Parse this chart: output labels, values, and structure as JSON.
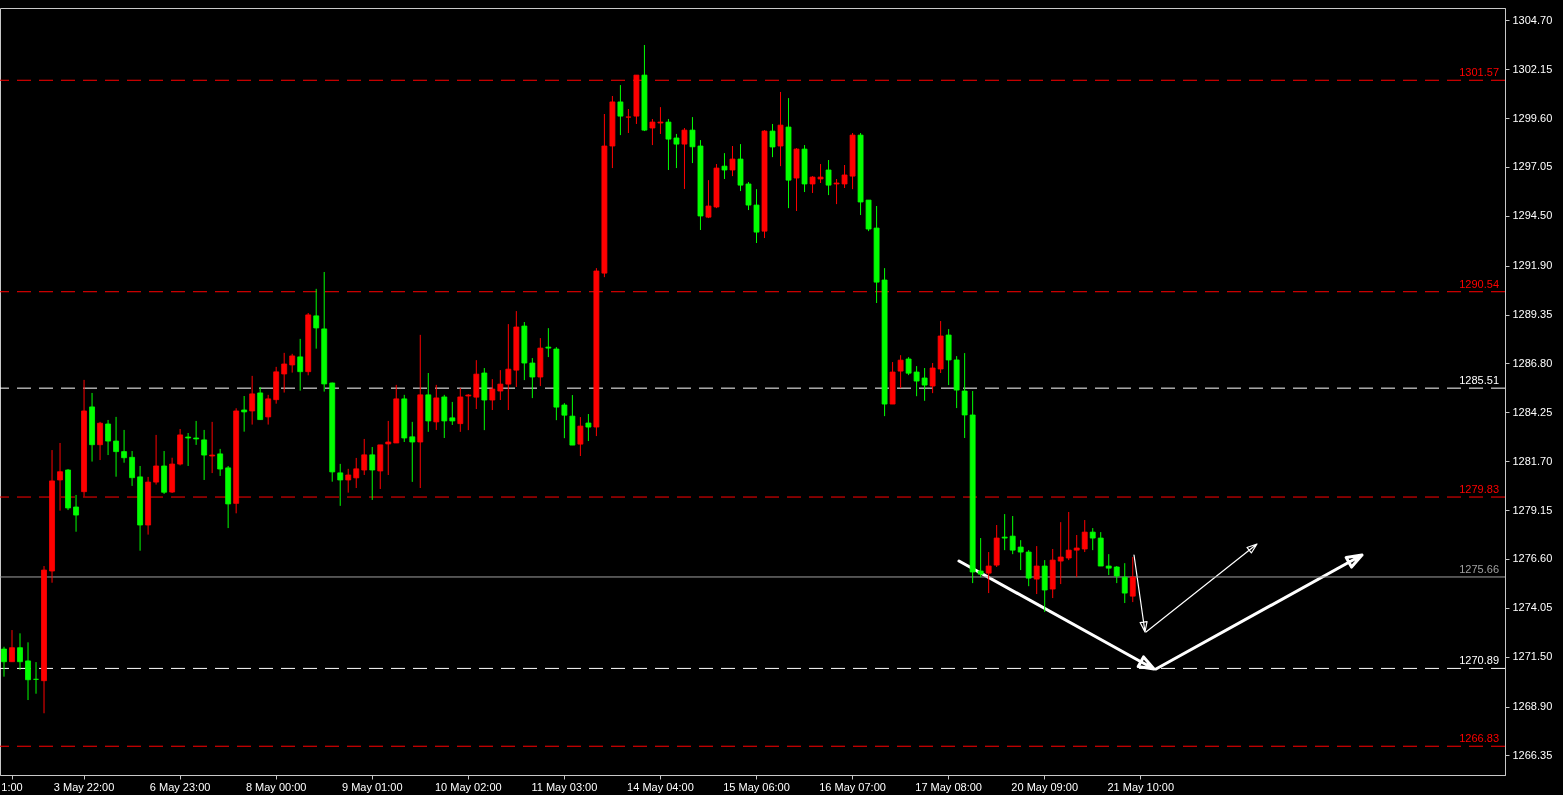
{
  "chart_data": {
    "type": "candlestick",
    "categories": [
      null,
      "1:00",
      null,
      null,
      null,
      null,
      null,
      null,
      null,
      null,
      "3 May 22:00",
      null,
      null,
      null,
      null,
      null,
      null,
      null,
      null,
      null,
      null,
      null,
      "6 May 23:00",
      null,
      null,
      null,
      null,
      null,
      null,
      null,
      null,
      null,
      null,
      null,
      "8 May 00:00",
      null,
      null,
      null,
      null,
      null,
      null,
      null,
      null,
      null,
      null,
      null,
      "9 May 01:00",
      null,
      null,
      null,
      null,
      null,
      null,
      null,
      null,
      null,
      null,
      null,
      "10 May 02:00",
      null,
      null,
      null,
      null,
      null,
      null,
      null,
      null,
      null,
      null,
      null,
      "11 May 03:00",
      null,
      null,
      null,
      null,
      null,
      null,
      null,
      null,
      null,
      null,
      null,
      "14 May 04:00",
      null,
      null,
      null,
      null,
      null,
      null,
      null,
      null,
      null,
      null,
      null,
      "15 May 06:00",
      null,
      null,
      null,
      null,
      null,
      null,
      null,
      null,
      null,
      null,
      null,
      "16 May 07:00",
      null,
      null,
      null,
      null,
      null,
      null,
      null,
      null,
      null,
      null,
      null,
      "17 May 08:00",
      null,
      null,
      null,
      null,
      null,
      null,
      null,
      null,
      null,
      null,
      null,
      "20 May 09:00",
      null,
      null,
      null,
      null,
      null,
      null,
      null,
      null,
      null,
      null,
      null,
      "21 May 10:00",
      null,
      null,
      null,
      null,
      null,
      null,
      null,
      null,
      null,
      null,
      null,
      null,
      null,
      null,
      null,
      null,
      null,
      null,
      null,
      null,
      null,
      null,
      null,
      null,
      null,
      null,
      null,
      null,
      null,
      null,
      null,
      null,
      null,
      null,
      null,
      null,
      null,
      null,
      null,
      null,
      null,
      null,
      null,
      null,
      null
    ],
    "ohlc": [
      [
        1271.9,
        1272.02,
        1270.46,
        1271.24
      ],
      [
        1271.24,
        1272.89,
        1271.24,
        1271.97
      ],
      [
        1271.97,
        1272.72,
        1270.81,
        1271.24
      ],
      [
        1271.28,
        1272.25,
        1269.24,
        1270.3
      ],
      [
        1270.32,
        1271.22,
        1269.57,
        1270.32
      ],
      [
        1270.25,
        1276.23,
        1268.55,
        1276.02
      ],
      [
        1275.97,
        1282.28,
        1275.36,
        1280.67
      ],
      [
        1280.72,
        1282.65,
        1279.12,
        1281.15
      ],
      [
        1281.24,
        1281.29,
        1279.15,
        1279.26
      ],
      [
        1279.31,
        1279.94,
        1278.02,
        1278.89
      ],
      [
        1280.11,
        1285.94,
        1279.85,
        1284.32
      ],
      [
        1284.53,
        1285.26,
        1281.68,
        1282.56
      ],
      [
        1282.56,
        1283.75,
        1281.76,
        1283.68
      ],
      [
        1283.64,
        1283.85,
        1282.02,
        1282.75
      ],
      [
        1282.75,
        1284.01,
        1280.89,
        1282.2
      ],
      [
        1282.2,
        1283.33,
        1281.62,
        1281.88
      ],
      [
        1281.9,
        1282.23,
        1280.41,
        1280.84
      ],
      [
        1280.88,
        1281.45,
        1277.03,
        1278.37
      ],
      [
        1278.37,
        1280.88,
        1277.87,
        1280.61
      ],
      [
        1280.61,
        1283.07,
        1280.48,
        1281.45
      ],
      [
        1281.45,
        1282.23,
        1279.99,
        1280.08
      ],
      [
        1280.09,
        1281.88,
        1280.04,
        1281.55
      ],
      [
        1281.55,
        1283.38,
        1281.48,
        1283.07
      ],
      [
        1282.96,
        1283.17,
        1281.45,
        1282.91
      ],
      [
        1282.91,
        1283.8,
        1282.55,
        1282.86
      ],
      [
        1282.81,
        1283.33,
        1280.72,
        1282.02
      ],
      [
        1281.97,
        1283.75,
        1281.08,
        1282.02
      ],
      [
        1282.08,
        1282.34,
        1280.93,
        1281.29
      ],
      [
        1281.35,
        1281.45,
        1278.21,
        1279.47
      ],
      [
        1279.5,
        1284.46,
        1278.98,
        1284.32
      ],
      [
        1284.37,
        1285.1,
        1283.24,
        1284.27
      ],
      [
        1284.32,
        1286.15,
        1283.61,
        1285.21
      ],
      [
        1285.26,
        1285.57,
        1283.85,
        1283.87
      ],
      [
        1284.01,
        1285.16,
        1283.61,
        1284.95
      ],
      [
        1284.91,
        1286.62,
        1284.7,
        1286.36
      ],
      [
        1286.25,
        1287.35,
        1285.28,
        1286.77
      ],
      [
        1286.72,
        1287.3,
        1286.32,
        1287.19
      ],
      [
        1287.14,
        1288.08,
        1285.38,
        1286.37
      ],
      [
        1286.37,
        1289.43,
        1286.18,
        1289.33
      ],
      [
        1289.28,
        1290.69,
        1287.57,
        1288.65
      ],
      [
        1288.6,
        1291.57,
        1285.33,
        1285.73
      ],
      [
        1285.78,
        1285.8,
        1280.63,
        1281.14
      ],
      [
        1281.09,
        1281.56,
        1279.37,
        1280.72
      ],
      [
        1280.72,
        1281.3,
        1280.06,
        1280.98
      ],
      [
        1280.83,
        1281.87,
        1280.3,
        1281.3
      ],
      [
        1281.24,
        1282.86,
        1280.98,
        1282.03
      ],
      [
        1282.03,
        1282.44,
        1279.68,
        1281.24
      ],
      [
        1281.19,
        1282.55,
        1280.25,
        1282.55
      ],
      [
        1282.6,
        1283.8,
        1280.98,
        1282.7
      ],
      [
        1282.65,
        1285.68,
        1282.65,
        1284.95
      ],
      [
        1284.95,
        1285.16,
        1282.7,
        1282.91
      ],
      [
        1282.97,
        1283.75,
        1280.62,
        1282.7
      ],
      [
        1282.7,
        1288.29,
        1280.3,
        1285.16
      ],
      [
        1285.16,
        1286.3,
        1283.23,
        1283.8
      ],
      [
        1283.75,
        1285.68,
        1283.33,
        1285.0
      ],
      [
        1285.05,
        1285.16,
        1282.91,
        1283.8
      ],
      [
        1283.96,
        1284.79,
        1283.59,
        1283.8
      ],
      [
        1283.66,
        1285.52,
        1283.23,
        1285.05
      ],
      [
        1285.1,
        1285.2,
        1283.32,
        1285.15
      ],
      [
        1285.04,
        1286.97,
        1284.42,
        1286.24
      ],
      [
        1286.3,
        1286.56,
        1283.32,
        1284.89
      ],
      [
        1284.89,
        1285.98,
        1284.37,
        1285.46
      ],
      [
        1285.36,
        1286.45,
        1284.89,
        1285.72
      ],
      [
        1285.72,
        1288.85,
        1284.37,
        1286.5
      ],
      [
        1286.45,
        1289.53,
        1285.57,
        1288.7
      ],
      [
        1288.75,
        1288.96,
        1285.93,
        1286.82
      ],
      [
        1286.82,
        1287.08,
        1284.99,
        1286.09
      ],
      [
        1286.09,
        1288.12,
        1285.62,
        1287.6
      ],
      [
        1287.65,
        1288.64,
        1287.13,
        1287.6
      ],
      [
        1287.55,
        1287.65,
        1283.84,
        1284.52
      ],
      [
        1284.63,
        1284.73,
        1282.9,
        1284.1
      ],
      [
        1284.05,
        1285.15,
        1282.54,
        1282.54
      ],
      [
        1282.59,
        1284.0,
        1281.97,
        1283.53
      ],
      [
        1283.69,
        1284.16,
        1282.75,
        1283.48
      ],
      [
        1283.48,
        1291.77,
        1283.01,
        1291.62
      ],
      [
        1291.51,
        1299.81,
        1291.3,
        1298.14
      ],
      [
        1298.14,
        1300.75,
        1296.99,
        1300.44
      ],
      [
        1300.44,
        1301.32,
        1298.71,
        1299.7
      ],
      [
        1299.65,
        1300.07,
        1298.82,
        1299.65
      ],
      [
        1299.7,
        1301.84,
        1299.29,
        1301.84
      ],
      [
        1301.84,
        1303.41,
        1298.92,
        1298.97
      ],
      [
        1299.08,
        1299.55,
        1298.19,
        1299.39
      ],
      [
        1299.34,
        1300.17,
        1298.77,
        1299.39
      ],
      [
        1299.39,
        1299.55,
        1296.89,
        1298.5
      ],
      [
        1298.56,
        1298.77,
        1296.99,
        1298.24
      ],
      [
        1298.24,
        1299.08,
        1295.9,
        1298.97
      ],
      [
        1298.97,
        1299.65,
        1297.25,
        1298.1
      ],
      [
        1298.14,
        1298.45,
        1293.76,
        1294.49
      ],
      [
        1294.43,
        1296.36,
        1294.38,
        1295.01
      ],
      [
        1294.96,
        1297.2,
        1294.9,
        1296.99
      ],
      [
        1297.09,
        1297.77,
        1296.42,
        1296.89
      ],
      [
        1296.89,
        1298.14,
        1296.57,
        1297.46
      ],
      [
        1297.46,
        1298.24,
        1295.79,
        1296.1
      ],
      [
        1296.16,
        1296.26,
        1294.8,
        1295.06
      ],
      [
        1295.06,
        1295.89,
        1293.08,
        1293.65
      ],
      [
        1293.7,
        1298.97,
        1293.34,
        1298.92
      ],
      [
        1298.92,
        1299.29,
        1297.56,
        1298.09
      ],
      [
        1298.14,
        1300.96,
        1297.09,
        1299.23
      ],
      [
        1299.13,
        1300.64,
        1294.9,
        1296.36
      ],
      [
        1296.47,
        1298.03,
        1294.75,
        1297.98
      ],
      [
        1297.98,
        1298.19,
        1295.74,
        1296.16
      ],
      [
        1296.16,
        1296.57,
        1295.69,
        1296.52
      ],
      [
        1296.42,
        1297.2,
        1296.21,
        1296.52
      ],
      [
        1296.89,
        1297.41,
        1295.58,
        1296.1
      ],
      [
        1296.16,
        1296.42,
        1295.11,
        1296.21
      ],
      [
        1296.16,
        1297.15,
        1295.95,
        1296.63
      ],
      [
        1296.57,
        1298.82,
        1295.89,
        1298.71
      ],
      [
        1298.71,
        1298.82,
        1294.54,
        1295.22
      ],
      [
        1295.32,
        1295.32,
        1293.7,
        1293.81
      ],
      [
        1293.86,
        1295.01,
        1289.95,
        1291.04
      ],
      [
        1291.15,
        1291.77,
        1284.05,
        1284.68
      ],
      [
        1284.68,
        1286.87,
        1284.68,
        1286.35
      ],
      [
        1286.4,
        1287.23,
        1285.51,
        1286.97
      ],
      [
        1287.03,
        1287.13,
        1286.19,
        1286.29
      ],
      [
        1286.35,
        1286.66,
        1285.09,
        1285.88
      ],
      [
        1286.04,
        1286.56,
        1284.85,
        1285.67
      ],
      [
        1285.62,
        1286.82,
        1285.25,
        1286.56
      ],
      [
        1286.51,
        1289.01,
        1286.3,
        1288.23
      ],
      [
        1288.28,
        1288.59,
        1285.67,
        1286.98
      ],
      [
        1286.98,
        1287.18,
        1284.47,
        1285.41
      ],
      [
        1285.36,
        1287.34,
        1282.91,
        1284.11
      ],
      [
        1284.11,
        1285.36,
        1275.34,
        1275.92
      ],
      [
        1275.97,
        1277.69,
        1275.65,
        1275.81
      ],
      [
        1275.86,
        1276.96,
        1274.82,
        1276.23
      ],
      [
        1276.28,
        1278.37,
        1276.18,
        1277.69
      ],
      [
        1277.74,
        1278.94,
        1277.06,
        1277.69
      ],
      [
        1277.79,
        1278.84,
        1276.85,
        1277.06
      ],
      [
        1277.22,
        1277.58,
        1276.02,
        1276.96
      ],
      [
        1276.96,
        1277.06,
        1275.18,
        1275.6
      ],
      [
        1275.55,
        1277.27,
        1274.77,
        1276.23
      ],
      [
        1276.23,
        1276.54,
        1273.83,
        1274.98
      ],
      [
        1275.03,
        1277.12,
        1274.56,
        1276.54
      ],
      [
        1276.49,
        1278.52,
        1275.29,
        1276.7
      ],
      [
        1276.65,
        1279.05,
        1276.54,
        1277.06
      ],
      [
        1277.06,
        1277.85,
        1275.65,
        1277.17
      ],
      [
        1277.12,
        1278.63,
        1276.96,
        1278.0
      ],
      [
        1278.0,
        1278.21,
        1277.06,
        1277.69
      ],
      [
        1277.69,
        1278.0,
        1276.23,
        1276.23
      ],
      [
        1276.23,
        1276.85,
        1275.76,
        1276.12
      ],
      [
        1276.18,
        1276.23,
        1275.34,
        1275.71
      ],
      [
        1275.65,
        1276.38,
        1274.3,
        1274.82
      ],
      [
        1274.66,
        1276.7,
        1274.35,
        1275.66
      ],
      null,
      null,
      null,
      null,
      null,
      null,
      null,
      null,
      null,
      null,
      null,
      null,
      null,
      null,
      null,
      null,
      null,
      null,
      null,
      null,
      null,
      null,
      null,
      null,
      null,
      null,
      null,
      null,
      null,
      null,
      null,
      null,
      null,
      null,
      null,
      null,
      null,
      null,
      null,
      null,
      null,
      null,
      null,
      null,
      null,
      null
    ],
    "colors": [
      "#00ff00",
      "#ff0000",
      "#00ff00",
      "#00ff00",
      "#00ff00",
      "#ff0000",
      "#ff0000",
      "#ff0000",
      "#00ff00",
      "#00ff00",
      "#ff0000",
      "#00ff00",
      "#ff0000",
      "#00ff00",
      "#00ff00",
      "#00ff00",
      "#00ff00",
      "#00ff00",
      "#ff0000",
      "#ff0000",
      "#00ff00",
      "#ff0000",
      "#ff0000",
      "#00ff00",
      "#00ff00",
      "#00ff00",
      "#ff0000",
      "#00ff00",
      "#00ff00",
      "#ff0000",
      "#00ff00",
      "#ff0000",
      "#00ff00",
      "#ff0000",
      "#ff0000",
      "#ff0000",
      "#ff0000",
      "#00ff00",
      "#ff0000",
      "#00ff00",
      "#00ff00",
      "#00ff00",
      "#00ff00",
      "#ff0000",
      "#ff0000",
      "#ff0000",
      "#00ff00",
      "#ff0000",
      "#ff0000",
      "#ff0000",
      "#00ff00",
      "#00ff00",
      "#ff0000",
      "#00ff00",
      "#ff0000",
      "#00ff00",
      "#00ff00",
      "#ff0000",
      "#ff0000",
      "#ff0000",
      "#00ff00",
      "#ff0000",
      "#ff0000",
      "#ff0000",
      "#ff0000",
      "#00ff00",
      "#00ff00",
      "#ff0000",
      "#00ff00",
      "#00ff00",
      "#00ff00",
      "#00ff00",
      "#ff0000",
      "#00ff00",
      "#ff0000",
      "#ff0000",
      "#ff0000",
      "#00ff00",
      "#ff0000",
      "#ff0000",
      "#00ff00",
      "#ff0000",
      "#ff0000",
      "#00ff00",
      "#00ff00",
      "#ff0000",
      "#00ff00",
      "#00ff00",
      "#ff0000",
      "#ff0000",
      "#00ff00",
      "#ff0000",
      "#00ff00",
      "#00ff00",
      "#00ff00",
      "#ff0000",
      "#00ff00",
      "#ff0000",
      "#00ff00",
      "#ff0000",
      "#00ff00",
      "#ff0000",
      "#ff0000",
      "#00ff00",
      "#ff0000",
      "#ff0000",
      "#ff0000",
      "#00ff00",
      "#00ff00",
      "#00ff00",
      "#00ff00",
      "#ff0000",
      "#ff0000",
      "#00ff00",
      "#00ff00",
      "#00ff00",
      "#ff0000",
      "#ff0000",
      "#00ff00",
      "#00ff00",
      "#00ff00",
      "#00ff00",
      "#00ff00",
      "#ff0000",
      "#ff0000",
      "#00ff00",
      "#00ff00",
      "#00ff00",
      "#00ff00",
      "#ff0000",
      "#00ff00",
      "#ff0000",
      "#ff0000",
      "#ff0000",
      "#ff0000",
      "#ff0000",
      "#00ff00",
      "#00ff00",
      "#00ff00",
      "#00ff00",
      "#00ff00",
      "#ff0000",
      null,
      null,
      null,
      null,
      null,
      null,
      null,
      null,
      null,
      null,
      null,
      null,
      null,
      null,
      null,
      null,
      null,
      null,
      null,
      null,
      null,
      null,
      null,
      null,
      null,
      null,
      null,
      null,
      null,
      null,
      null,
      null,
      null,
      null,
      null,
      null,
      null,
      null,
      null,
      null,
      null,
      null,
      null,
      null,
      null,
      null
    ],
    "ref_lines": [
      {
        "axis": "y",
        "value": 1301.57,
        "label": "1301.57",
        "color": "#ff0000",
        "line_style": "dashed"
      },
      {
        "axis": "y",
        "value": 1290.54,
        "label": "1290.54",
        "color": "#ff0000",
        "line_style": "dashed"
      },
      {
        "axis": "y",
        "value": 1285.51,
        "label": "1285.51",
        "color": "#ffffff",
        "line_style": "dashed"
      },
      {
        "axis": "y",
        "value": 1279.83,
        "label": "1279.83",
        "color": "#ff0000",
        "line_style": "dashed"
      },
      {
        "axis": "y",
        "value": 1275.66,
        "label": "1275.66",
        "color": "#a0a0a0",
        "line_style": "solid"
      },
      {
        "axis": "y",
        "value": 1270.89,
        "label": "1270.89",
        "color": "#ffffff",
        "line_style": "dashed"
      },
      {
        "axis": "y",
        "value": 1266.83,
        "label": "1266.83",
        "color": "#ff0000",
        "line_style": "dashed"
      }
    ],
    "ylim": [
      1265.33,
      1305.34
    ],
    "yticks": [
      {
        "value": 1304.7,
        "label": "1304.70"
      },
      1302.15,
      {
        "value": 1299.6,
        "label": "1299.60"
      },
      1297.05,
      {
        "value": 1294.5,
        "label": "1294.50"
      },
      {
        "value": 1291.9,
        "label": "1291.90"
      },
      1289.35,
      {
        "value": 1286.8,
        "label": "1286.80"
      },
      1284.25,
      {
        "value": 1281.7,
        "label": "1281.70"
      },
      1279.15,
      {
        "value": 1276.6,
        "label": "1276.60"
      },
      1274.05,
      {
        "value": 1271.5,
        "label": "1271.50"
      },
      {
        "value": 1268.9,
        "label": "1268.90"
      },
      1266.35
    ],
    "grid": false
  }
}
